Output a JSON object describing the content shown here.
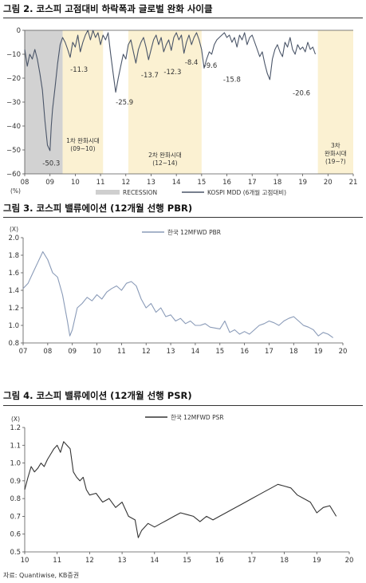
{
  "figures": [
    {
      "title": "그림 2. 코스피 고점대비 하락폭과 글로벌 완화 사이클",
      "chart_data": {
        "type": "line",
        "unit_label": "(%)",
        "ylim": [
          -60,
          0
        ],
        "yticks": [
          0,
          -10,
          -20,
          -30,
          -40,
          -50,
          -60
        ],
        "xlim": [
          8,
          21
        ],
        "xtick_labels": [
          "08",
          "09",
          "10",
          "11",
          "12",
          "13",
          "14",
          "15",
          "16",
          "17",
          "18",
          "19",
          "20",
          "21"
        ],
        "legend": [
          {
            "name": "RECESSION",
            "kind": "band",
            "color": "#cfcfcf"
          },
          {
            "name": "KOSPI MDD (6개월 고점대비)",
            "kind": "line",
            "color": "#4a5568"
          }
        ],
        "bands": [
          {
            "kind": "recession",
            "start": 8.0,
            "end": 9.5
          },
          {
            "kind": "easing",
            "start": 9.5,
            "end": 11.1
          },
          {
            "kind": "easing",
            "start": 12.1,
            "end": 15.0
          },
          {
            "kind": "easing",
            "start": 19.6,
            "end": 21.0
          }
        ],
        "band_labels": [
          {
            "lines": [
              "1차 완화시대",
              "(09~10)"
            ],
            "x": 10.3,
            "y": -47
          },
          {
            "lines": [
              "2차 완화시대",
              "(12~14)"
            ],
            "x": 13.55,
            "y": -53
          },
          {
            "lines": [
              "3차",
              "완화시대",
              "(19~?)"
            ],
            "x": 20.3,
            "y": -49
          }
        ],
        "annotations": [
          {
            "text": "-50.3",
            "x": 9.05,
            "y": -56.5,
            "color": "#d6322f"
          },
          {
            "text": "-11.3",
            "x": 10.15,
            "y": -17.3,
            "color": "#c9a227"
          },
          {
            "text": "-25.9",
            "x": 11.95,
            "y": -31.0,
            "color": "#d6322f"
          },
          {
            "text": "-13.7",
            "x": 12.95,
            "y": -19.6,
            "color": "#c9a227"
          },
          {
            "text": "-12.3",
            "x": 13.85,
            "y": -18.3,
            "color": "#c9a227"
          },
          {
            "text": "-8.4",
            "x": 14.6,
            "y": -14.4,
            "color": "#c9a227"
          },
          {
            "text": "-9.6",
            "x": 15.35,
            "y": -15.6,
            "color": "#c9a227"
          },
          {
            "text": "-15.8",
            "x": 16.2,
            "y": -21.5,
            "color": "#d6322f"
          },
          {
            "text": "-20.6",
            "x": 18.95,
            "y": -27.2,
            "color": "#d6322f"
          }
        ],
        "series": [
          {
            "x": [
              8.0,
              8.1,
              8.2,
              8.3,
              8.4,
              8.5,
              8.6,
              8.7,
              8.8,
              8.9,
              9.0,
              9.05,
              9.1,
              9.2,
              9.3,
              9.4,
              9.5,
              9.6,
              9.7,
              9.8,
              9.9,
              10.0,
              10.1,
              10.2,
              10.3,
              10.4,
              10.5,
              10.6,
              10.7,
              10.8,
              10.9,
              11.0,
              11.1,
              11.2,
              11.3,
              11.4,
              11.5,
              11.6,
              11.7,
              11.8,
              11.9,
              12.0,
              12.1,
              12.2,
              12.3,
              12.4,
              12.5,
              12.6,
              12.7,
              12.8,
              12.9,
              13.0,
              13.1,
              13.2,
              13.3,
              13.4,
              13.5,
              13.6,
              13.7,
              13.8,
              13.9,
              14.0,
              14.1,
              14.2,
              14.3,
              14.4,
              14.5,
              14.6,
              14.7,
              14.8,
              14.9,
              15.0,
              15.1,
              15.2,
              15.3,
              15.4,
              15.5,
              15.6,
              15.7,
              15.8,
              15.9,
              16.0,
              16.1,
              16.2,
              16.3,
              16.4,
              16.5,
              16.6,
              16.7,
              16.8,
              16.9,
              17.0,
              17.1,
              17.2,
              17.3,
              17.4,
              17.5,
              17.6,
              17.7,
              17.8,
              17.9,
              18.0,
              18.1,
              18.2,
              18.3,
              18.4,
              18.5,
              18.6,
              18.7,
              18.8,
              18.9,
              19.0,
              19.1,
              19.2,
              19.3,
              19.4,
              19.5
            ],
            "values": [
              -8,
              -15,
              -10,
              -12,
              -8,
              -12,
              -18,
              -25,
              -38,
              -48,
              -50.3,
              -40,
              -33,
              -24,
              -14,
              -6,
              -3,
              -5,
              -8,
              -11.3,
              -5,
              -7,
              -2,
              -9,
              -5,
              -2,
              0,
              -4,
              0,
              -3,
              -1,
              -6,
              -2,
              -4,
              -1,
              -10,
              -18,
              -25.9,
              -20,
              -15,
              -10,
              -12,
              -6,
              -4,
              -9,
              -13.7,
              -8,
              -5,
              -3,
              -7,
              -12.3,
              -8,
              -4,
              -2,
              -6,
              -3,
              -9,
              -6,
              -4,
              -8.4,
              -3,
              -1,
              -4,
              -2,
              -9.6,
              -5,
              -2,
              -6,
              -3,
              -1,
              -4,
              -8,
              -15.8,
              -12,
              -9,
              -10,
              -6,
              -4,
              -3,
              -2,
              -1,
              -3,
              -2,
              -5,
              -3,
              -7,
              -2,
              -4,
              -1,
              -6,
              -3,
              -2,
              -5,
              -8,
              -11,
              -9,
              -14,
              -18,
              -20.6,
              -12,
              -8,
              -6,
              -9,
              -11,
              -5,
              -7,
              -3,
              -8,
              -10,
              -6,
              -8,
              -7,
              -9,
              -5,
              -8,
              -7,
              -10
            ],
            "color": "#4a5568"
          }
        ]
      }
    },
    {
      "title": "그림 3. 코스피 밸류에이션 (12개월 선행 PBR)",
      "chart_data": {
        "type": "line",
        "unit_label": "(X)",
        "ylim": [
          0.8,
          2.0
        ],
        "yticks": [
          2.0,
          1.8,
          1.6,
          1.4,
          1.2,
          1.0,
          0.8
        ],
        "xlim": [
          7,
          20
        ],
        "xtick_labels": [
          "07",
          "08",
          "09",
          "10",
          "11",
          "12",
          "13",
          "14",
          "15",
          "16",
          "17",
          "18",
          "19",
          "20"
        ],
        "series": [
          {
            "name": "한국 12MFWD PBR",
            "color": "#8a9bb8",
            "x": [
              7.0,
              7.2,
              7.4,
              7.6,
              7.8,
              8.0,
              8.2,
              8.4,
              8.6,
              8.8,
              8.9,
              9.0,
              9.2,
              9.4,
              9.6,
              9.8,
              10.0,
              10.2,
              10.4,
              10.6,
              10.8,
              11.0,
              11.2,
              11.4,
              11.6,
              11.8,
              12.0,
              12.2,
              12.4,
              12.6,
              12.8,
              13.0,
              13.2,
              13.4,
              13.6,
              13.8,
              14.0,
              14.2,
              14.4,
              14.6,
              14.8,
              15.0,
              15.2,
              15.4,
              15.6,
              15.8,
              16.0,
              16.2,
              16.4,
              16.6,
              16.8,
              17.0,
              17.2,
              17.4,
              17.6,
              17.8,
              18.0,
              18.2,
              18.4,
              18.6,
              18.8,
              19.0,
              19.2,
              19.4,
              19.6
            ],
            "values": [
              1.42,
              1.48,
              1.6,
              1.72,
              1.84,
              1.75,
              1.6,
              1.55,
              1.35,
              1.05,
              0.88,
              0.95,
              1.2,
              1.25,
              1.32,
              1.28,
              1.35,
              1.3,
              1.38,
              1.42,
              1.45,
              1.4,
              1.48,
              1.5,
              1.45,
              1.3,
              1.2,
              1.25,
              1.15,
              1.2,
              1.1,
              1.12,
              1.05,
              1.08,
              1.02,
              1.05,
              1.0,
              1.0,
              1.02,
              0.98,
              0.97,
              0.96,
              1.05,
              0.92,
              0.95,
              0.9,
              0.93,
              0.9,
              0.95,
              1.0,
              1.02,
              1.05,
              1.03,
              1.0,
              1.05,
              1.08,
              1.1,
              1.05,
              1.0,
              0.98,
              0.95,
              0.88,
              0.92,
              0.9,
              0.86
            ]
          }
        ]
      }
    },
    {
      "title": "그림 4. 코스피 밸류에이션 (12개월 선행 PSR)",
      "chart_data": {
        "type": "line",
        "unit_label": "(X)",
        "ylim": [
          0.5,
          1.2
        ],
        "yticks": [
          1.2,
          1.1,
          1.0,
          0.9,
          0.8,
          0.7,
          0.6,
          0.5
        ],
        "xlim": [
          10,
          20
        ],
        "xtick_labels": [
          "10",
          "11",
          "12",
          "13",
          "14",
          "15",
          "16",
          "17",
          "18",
          "19",
          "20"
        ],
        "series": [
          {
            "name": "한국 12MFWD PSR",
            "color": "#333333",
            "x": [
              10.0,
              10.1,
              10.2,
              10.3,
              10.4,
              10.5,
              10.6,
              10.7,
              10.8,
              10.9,
              11.0,
              11.1,
              11.2,
              11.3,
              11.4,
              11.5,
              11.6,
              11.7,
              11.8,
              11.9,
              12.0,
              12.2,
              12.4,
              12.6,
              12.8,
              13.0,
              13.2,
              13.4,
              13.5,
              13.6,
              13.8,
              14.0,
              14.2,
              14.4,
              14.6,
              14.8,
              15.0,
              15.2,
              15.4,
              15.6,
              15.8,
              16.0,
              16.2,
              16.4,
              16.6,
              16.8,
              17.0,
              17.2,
              17.4,
              17.6,
              17.8,
              18.0,
              18.2,
              18.4,
              18.6,
              18.8,
              19.0,
              19.2,
              19.4,
              19.6
            ],
            "values": [
              0.85,
              0.92,
              0.98,
              0.95,
              0.97,
              1.0,
              0.98,
              1.02,
              1.05,
              1.08,
              1.1,
              1.06,
              1.12,
              1.1,
              1.08,
              0.95,
              0.92,
              0.9,
              0.92,
              0.85,
              0.82,
              0.83,
              0.78,
              0.8,
              0.75,
              0.78,
              0.7,
              0.68,
              0.58,
              0.62,
              0.66,
              0.64,
              0.66,
              0.68,
              0.7,
              0.72,
              0.71,
              0.7,
              0.67,
              0.7,
              0.68,
              0.7,
              0.72,
              0.74,
              0.76,
              0.78,
              0.8,
              0.82,
              0.84,
              0.86,
              0.88,
              0.87,
              0.86,
              0.82,
              0.8,
              0.78,
              0.72,
              0.75,
              0.76,
              0.7
            ]
          }
        ]
      }
    }
  ],
  "source": "자료: Quantiwise, KB증권"
}
